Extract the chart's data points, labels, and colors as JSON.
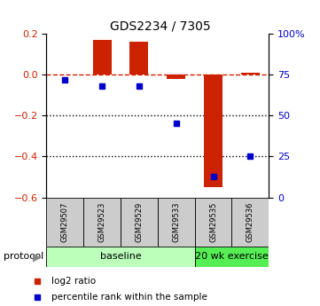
{
  "title": "GDS2234 / 7305",
  "samples": [
    "GSM29507",
    "GSM29523",
    "GSM29529",
    "GSM29533",
    "GSM29535",
    "GSM29536"
  ],
  "log2_ratio": [
    0.0,
    0.17,
    0.16,
    -0.02,
    -0.55,
    0.01
  ],
  "percentile_rank": [
    72,
    68,
    68,
    45,
    13,
    25
  ],
  "ylim_left": [
    -0.6,
    0.2
  ],
  "ylim_right": [
    0,
    100
  ],
  "bar_color": "#cc2200",
  "dot_color": "#0000cc",
  "dashed_line_color": "#cc2200",
  "dotted_line_color": "#000000",
  "bg_color": "#ffffff",
  "plot_bg": "#ffffff",
  "sample_box_color": "#cccccc",
  "baseline_color": "#bbffbb",
  "exercise_color": "#55ee55",
  "baseline_label": "baseline",
  "exercise_label": "20 wk exercise",
  "protocol_label": "protocol",
  "legend_label1": "log2 ratio",
  "legend_label2": "percentile rank within the sample"
}
